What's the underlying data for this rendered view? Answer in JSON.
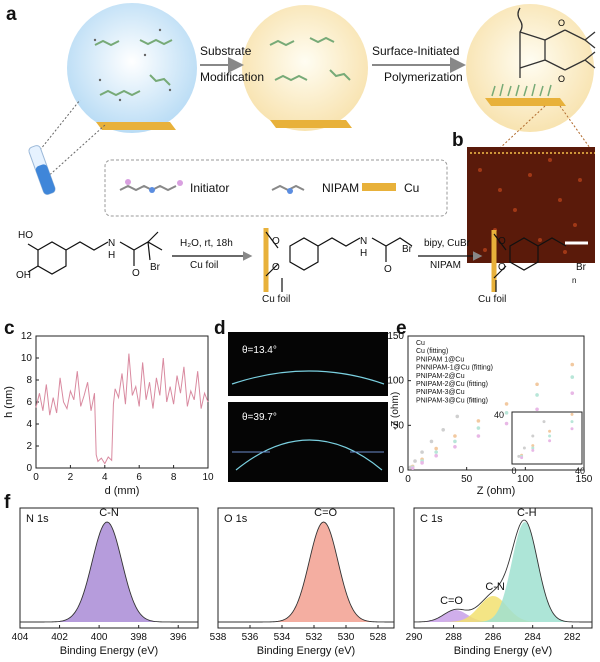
{
  "panels": {
    "a": "a",
    "b": "b",
    "c": "c",
    "d": "d",
    "e": "e",
    "f": "f"
  },
  "schematic": {
    "arrow1": [
      "Substrate",
      "Modification"
    ],
    "arrow2": [
      "Surface-Initiated",
      "Polymerization"
    ],
    "legend": {
      "initiator": "Initiator",
      "nipam": "NIPAM",
      "cu": "Cu"
    }
  },
  "reaction": {
    "step1_top": "H₂O, rt, 18h",
    "step1_bottom": "Cu foil",
    "step2_top": "bipy, CuBr",
    "step2_bottom": "NIPAM",
    "cu_foil": "Cu foil",
    "oh": "OH",
    "ho": "HO",
    "nh": "N",
    "h": "H",
    "o": "O",
    "br": "Br",
    "n_sub": "n"
  },
  "panel_d": {
    "angle1": "θ=13.4°",
    "angle2": "θ=39.7°"
  },
  "chart_data": [
    {
      "type": "line",
      "panel": "c",
      "xlabel": "d (mm)",
      "ylabel": "h (nm)",
      "xlim": [
        0,
        10
      ],
      "ylim": [
        0,
        12
      ],
      "xticks": [
        0,
        2,
        4,
        6,
        8,
        10
      ],
      "yticks": [
        0,
        2,
        4,
        6,
        8,
        10,
        12
      ],
      "color": "#d98aa0",
      "x": [
        0,
        0.2,
        0.4,
        0.6,
        0.8,
        1.0,
        1.2,
        1.4,
        1.6,
        1.8,
        2.0,
        2.2,
        2.4,
        2.6,
        2.8,
        3.0,
        3.2,
        3.4,
        3.5,
        3.6,
        3.8,
        4.0,
        4.2,
        4.4,
        4.5,
        4.6,
        4.8,
        5.0,
        5.2,
        5.4,
        5.6,
        5.8,
        6.0,
        6.2,
        6.4,
        6.6,
        6.8,
        7.0,
        7.2,
        7.4,
        7.6,
        7.8,
        8.0,
        8.2,
        8.4,
        8.6,
        8.8,
        9.0,
        9.2,
        9.4,
        9.6,
        9.8,
        10.0
      ],
      "y": [
        5.5,
        6.8,
        5.2,
        7.6,
        4.8,
        6.4,
        5.0,
        8.2,
        6.0,
        5.4,
        7.0,
        6.2,
        8.8,
        5.6,
        6.6,
        7.8,
        5.2,
        6.8,
        1.2,
        0.6,
        0.9,
        0.4,
        1.0,
        0.7,
        5.8,
        7.2,
        6.4,
        8.6,
        5.8,
        10.4,
        6.6,
        7.4,
        5.6,
        9.6,
        6.2,
        7.8,
        5.4,
        8.2,
        6.6,
        10.0,
        6.0,
        7.4,
        5.8,
        8.4,
        6.8,
        9.2,
        5.6,
        7.0,
        6.2,
        8.8,
        5.4,
        6.8,
        6.0
      ]
    },
    {
      "type": "scatter",
      "panel": "e",
      "xlabel": "Z (ohm)",
      "ylabel": "-Z (ohm)",
      "xlim": [
        0,
        150
      ],
      "ylim": [
        0,
        150
      ],
      "xticks": [
        0,
        50,
        100,
        150
      ],
      "yticks": [
        0,
        50,
        100,
        150
      ],
      "inset_ticks": {
        "x": [
          "0",
          "40"
        ],
        "y": [
          "40"
        ]
      },
      "series": [
        {
          "name": "Cu",
          "color": "#cfcfcf",
          "x": [
            2,
            6,
            12,
            20,
            30,
            42,
            56
          ],
          "y": [
            3,
            10,
            20,
            32,
            45,
            60,
            78
          ]
        },
        {
          "name": "Cu (fitting)",
          "color": "#9e9e9e",
          "x": [],
          "y": []
        },
        {
          "name": "PNIPAM 1@Cu",
          "color": "#f2c9a0",
          "x": [
            4,
            12,
            24,
            40,
            60,
            84,
            110,
            140
          ],
          "y": [
            4,
            12,
            24,
            38,
            55,
            74,
            96,
            118
          ]
        },
        {
          "name": "PNNIPAM-1@Cu (fitting)",
          "color": "#c9a07a",
          "x": [],
          "y": []
        },
        {
          "name": "PNIPAM-2@Cu",
          "color": "#b8e6d8",
          "x": [
            4,
            12,
            24,
            40,
            60,
            84,
            110,
            140
          ],
          "y": [
            3,
            10,
            20,
            32,
            47,
            64,
            84,
            104
          ]
        },
        {
          "name": "PNIPAM-2@Cu (fitting)",
          "color": "#7cc4b0",
          "x": [],
          "y": []
        },
        {
          "name": "PNIPAM-3@Cu",
          "color": "#e8b8e6",
          "x": [
            4,
            12,
            24,
            40,
            60,
            84,
            110,
            140
          ],
          "y": [
            2,
            8,
            16,
            26,
            38,
            52,
            68,
            86
          ]
        },
        {
          "name": "PNIPAM-3@Cu (fitting)",
          "color": "#b07cb0",
          "x": [],
          "y": []
        }
      ]
    },
    {
      "type": "area",
      "panel": "f1",
      "title": "N 1s",
      "xlabel": "Binding Energy (eV)",
      "xlim": [
        404,
        395
      ],
      "xticks": [
        404,
        402,
        400,
        398,
        396
      ],
      "peaks": [
        {
          "label": "C-N",
          "center": 399.6,
          "height": 1.0,
          "width": 0.75,
          "color": "#a98bd6"
        }
      ]
    },
    {
      "type": "area",
      "panel": "f2",
      "title": "O 1s",
      "xlabel": "Binding Energy (eV)",
      "xlim": [
        538,
        527
      ],
      "xticks": [
        538,
        536,
        534,
        532,
        530,
        528
      ],
      "peaks": [
        {
          "label": "C=O",
          "center": 531.4,
          "height": 1.0,
          "width": 0.9,
          "color": "#f2a090"
        }
      ]
    },
    {
      "type": "area",
      "panel": "f3",
      "title": "C 1s",
      "xlabel": "Binding Energy (eV)",
      "xlim": [
        290,
        281
      ],
      "xticks": [
        290,
        288,
        286,
        284,
        282
      ],
      "peaks": [
        {
          "label": "C=O",
          "center": 287.9,
          "height": 0.12,
          "width": 0.6,
          "color": "#c8a0e8"
        },
        {
          "label": "C-N",
          "center": 286.0,
          "height": 0.26,
          "width": 0.7,
          "color": "#f2e070"
        },
        {
          "label": "C-H",
          "center": 284.4,
          "height": 1.0,
          "width": 0.65,
          "color": "#9fe0d0"
        }
      ]
    }
  ]
}
